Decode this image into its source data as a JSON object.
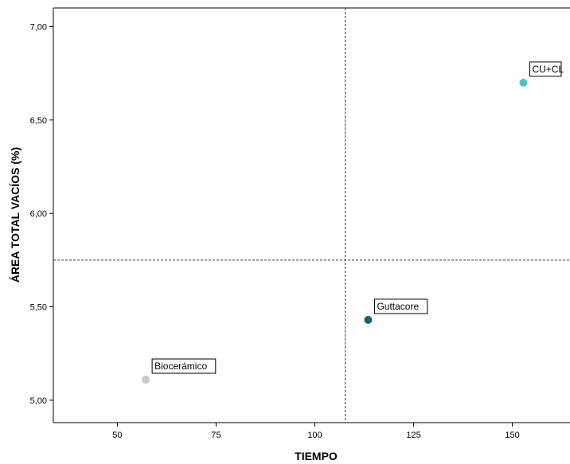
{
  "chart_data": {
    "type": "scatter",
    "xlabel": "TIEMPO",
    "ylabel": "ÁREA TOTAL VACÍOS (%)",
    "xlim": [
      33.8,
      164.6
    ],
    "ylim": [
      4.88,
      7.1
    ],
    "x_ticks": [
      {
        "value": 50,
        "label": "50"
      },
      {
        "value": 75,
        "label": "75"
      },
      {
        "value": 100,
        "label": "100"
      },
      {
        "value": 125,
        "label": "125"
      },
      {
        "value": 150,
        "label": "150"
      }
    ],
    "y_ticks": [
      {
        "value": 5.0,
        "label": "5,00"
      },
      {
        "value": 5.5,
        "label": "5,50"
      },
      {
        "value": 6.0,
        "label": "6,00"
      },
      {
        "value": 6.5,
        "label": "6,50"
      },
      {
        "value": 7.0,
        "label": "7,00"
      }
    ],
    "reference_lines": {
      "x": 107.7,
      "y": 5.75
    },
    "points": [
      {
        "label": "CU+CL",
        "x": 152.8,
        "y": 6.7,
        "color": "#4FC3C3"
      },
      {
        "label": "Guttacore",
        "x": 113.5,
        "y": 5.43,
        "color": "#1C5E78"
      },
      {
        "label": "Biocerámico",
        "x": 57.2,
        "y": 5.11,
        "color": "#C8C8C8"
      }
    ],
    "grid": false,
    "legend": "none"
  }
}
